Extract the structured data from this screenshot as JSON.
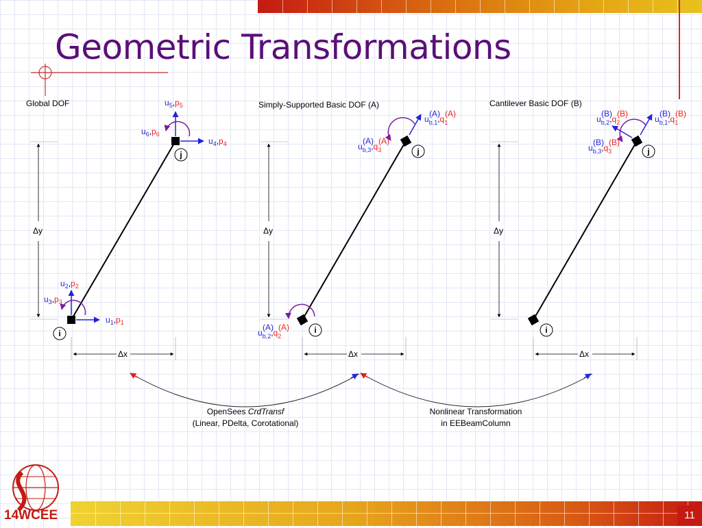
{
  "slide": {
    "title": "Geometric Transformations",
    "number": "11",
    "logo_text": "14WCEE"
  },
  "panels": {
    "global": {
      "heading": "Global DOF",
      "dx": "Δx",
      "dy": "Δy",
      "node_i": "i",
      "node_j": "j",
      "dofs": [
        {
          "u": "u",
          "usub": "1",
          "p": "p",
          "psub": "1"
        },
        {
          "u": "u",
          "usub": "2",
          "p": "p",
          "psub": "2"
        },
        {
          "u": "u",
          "usub": "3",
          "p": "p",
          "psub": "3"
        },
        {
          "u": "u",
          "usub": "4",
          "p": "p",
          "psub": "4"
        },
        {
          "u": "u",
          "usub": "5",
          "p": "p",
          "psub": "5"
        },
        {
          "u": "u",
          "usub": "6",
          "p": "p",
          "psub": "6"
        }
      ]
    },
    "simply_supported": {
      "heading": "Simply-Supported Basic DOF (A)",
      "dx": "Δx",
      "dy": "Δy",
      "node_i": "i",
      "node_j": "j",
      "sup": "(A)",
      "dofs": [
        {
          "usub": "b,1",
          "qsub": "1"
        },
        {
          "usub": "b,2",
          "qsub": "2"
        },
        {
          "usub": "b,3",
          "qsub": "3"
        }
      ]
    },
    "cantilever": {
      "heading": "Cantilever Basic DOF (B)",
      "dx": "Δx",
      "dy": "Δy",
      "node_i": "i",
      "node_j": "j",
      "sup": "(B)",
      "dofs": [
        {
          "usub": "b,1",
          "qsub": "1"
        },
        {
          "usub": "b,2",
          "qsub": "2"
        },
        {
          "usub": "b,3",
          "qsub": "3"
        }
      ]
    }
  },
  "transformations": {
    "left": {
      "line1_prefix": "OpenSees ",
      "line1_italic": "CrdTransf",
      "line2": "(Linear, PDelta, Corotational)"
    },
    "right": {
      "line1": "Nonlinear Transformation",
      "line2": "in EEBeamColumn"
    }
  },
  "colors": {
    "title": "#5a0f78",
    "u_blue": "#2222dd",
    "p_red": "#ee2222",
    "moment_purple": "#7a1fa0",
    "arrow_red": "#e02020",
    "arrow_blue": "#2a2ae0"
  }
}
